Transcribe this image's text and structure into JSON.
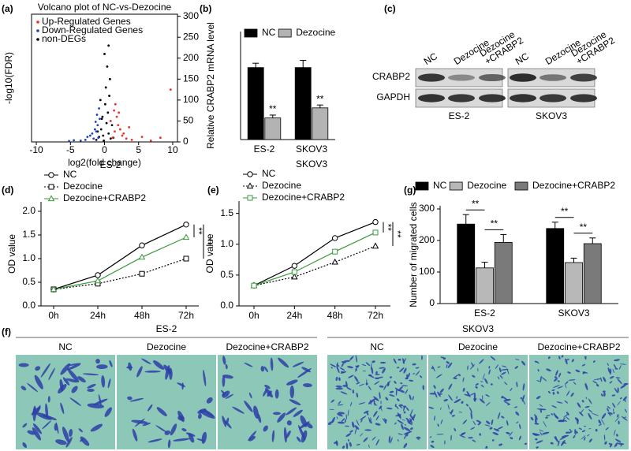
{
  "panel_labels": [
    "(a)",
    "(b)",
    "(c)",
    "(d)",
    "(e)",
    "(f)",
    "(g)"
  ],
  "chart_data": [
    {
      "type": "scatter",
      "title": "Volcano plot of NC-vs-Dezocine",
      "x_label": "log2(fold change)",
      "y_label": "-log10(FDR)",
      "xlim": [
        -10.7,
        10.7
      ],
      "xticks": [
        -10,
        -5,
        0,
        5,
        10
      ],
      "ylim": [
        0,
        305
      ],
      "yticks": [
        0,
        50,
        100,
        150,
        200,
        250,
        300
      ],
      "legend": "upper left",
      "series": [
        {
          "name": "Up-Regulated Genes",
          "color": "#e8332a",
          "x": [
            1.2,
            1.5,
            2.0,
            2.6,
            3.2,
            4.0,
            1.8,
            2.3,
            1.4,
            5.5,
            6.8,
            9.7,
            8.2,
            2.8,
            1.6,
            3.6,
            0.9,
            2.1
          ],
          "values": [
            10,
            25,
            40,
            15,
            8,
            5,
            60,
            30,
            75,
            12,
            3,
            125,
            10,
            20,
            90,
            35,
            50,
            70
          ]
        },
        {
          "name": "Down-Regulated Genes",
          "color": "#1f3fbf",
          "x": [
            -0.9,
            -1.2,
            -1.6,
            -2.1,
            -2.8,
            -3.5,
            -1.0,
            -1.4,
            -0.7,
            -2.5,
            -1.8,
            -4.5,
            -5.2,
            -1.1,
            -0.8,
            -1.3
          ],
          "values": [
            10,
            25,
            8,
            15,
            5,
            3,
            40,
            30,
            55,
            12,
            20,
            4,
            2,
            65,
            80,
            48
          ]
        },
        {
          "name": "non-DEGs",
          "color": "#000000",
          "x": [
            -1.2,
            -0.8,
            -0.5,
            -0.3,
            0.1,
            0.3,
            0.6,
            0.9,
            -0.6,
            0.2,
            0.5,
            -0.2,
            0.8,
            1.1,
            -1.0,
            0.4,
            0.0,
            0.7,
            -0.4,
            1.3,
            0.6,
            -0.1
          ],
          "values": [
            5,
            12,
            30,
            60,
            90,
            45,
            20,
            8,
            100,
            130,
            70,
            15,
            150,
            40,
            25,
            180,
            210,
            110,
            55,
            10,
            230,
            3
          ]
        }
      ]
    },
    {
      "type": "bar",
      "y_label": "Relative CRABP2 mRNA level",
      "categories": [
        "ES-2",
        "SKOV3"
      ],
      "ylim": [
        0,
        1.5
      ],
      "series": [
        {
          "name": "NC",
          "color": "#000000",
          "values": [
            1.0,
            1.0
          ],
          "errors": [
            0.06,
            0.1
          ]
        },
        {
          "name": "Dezocine",
          "color": "#b3b3b3",
          "values": [
            0.3,
            0.44
          ],
          "errors": [
            0.04,
            0.04
          ]
        }
      ],
      "significance": [
        "**",
        "**"
      ]
    },
    {
      "type": "line",
      "title": "ES-2",
      "y_label": "OD value",
      "categories": [
        "0h",
        "24h",
        "48h",
        "72h"
      ],
      "ylim": [
        0,
        2.2
      ],
      "yticks": [
        {
          "value": 0,
          "label": "0.0"
        },
        0.5,
        {
          "value": 1,
          "label": "1.0"
        },
        1.5,
        {
          "value": 2,
          "label": "2.0"
        }
      ],
      "series": [
        {
          "name": "NC",
          "color": "#000000",
          "marker": "circle",
          "dashed": false,
          "values": [
            0.35,
            0.65,
            1.28,
            1.72
          ]
        },
        {
          "name": "Dezocine",
          "color": "#000000",
          "marker": "square",
          "dashed": true,
          "values": [
            0.35,
            0.47,
            0.68,
            1.0
          ]
        },
        {
          "name": "Dezocine+CRABP2",
          "color": "#3a9a3a",
          "marker": "triangle",
          "dashed": false,
          "values": [
            0.35,
            0.53,
            1.03,
            1.45
          ]
        }
      ],
      "significance": [
        "**",
        "**"
      ]
    },
    {
      "type": "line",
      "title": "SKOV3",
      "y_label": "OD value",
      "categories": [
        "0h",
        "24h",
        "48h",
        "72h"
      ],
      "ylim": [
        0,
        1.7
      ],
      "yticks": [
        {
          "value": 0,
          "label": "0.0"
        },
        0.5,
        {
          "value": 1,
          "label": "1.0"
        },
        1.5
      ],
      "series": [
        {
          "name": "NC",
          "color": "#000000",
          "marker": "circle",
          "dashed": false,
          "values": [
            0.33,
            0.65,
            1.1,
            1.36
          ]
        },
        {
          "name": "Dezocine",
          "color": "#000000",
          "marker": "triangle",
          "dashed": true,
          "values": [
            0.33,
            0.47,
            0.71,
            0.97
          ]
        },
        {
          "name": "Dezocine+CRABP2",
          "color": "#3a9a3a",
          "marker": "square",
          "dashed": false,
          "values": [
            0.33,
            0.55,
            0.88,
            1.19
          ]
        }
      ],
      "significance": [
        "**",
        "**"
      ]
    },
    {
      "type": "bar",
      "y_label": "Number of migrated cells",
      "categories": [
        "ES-2",
        "SKOV3"
      ],
      "ylim": [
        0,
        310
      ],
      "yticks": [
        0,
        100,
        200,
        300
      ],
      "series": [
        {
          "name": "NC",
          "color": "#000000",
          "values": [
            252,
            238
          ],
          "errors": [
            30,
            20
          ]
        },
        {
          "name": "Dezocine",
          "color": "#b8b8b8",
          "values": [
            113,
            130
          ],
          "errors": [
            18,
            14
          ]
        },
        {
          "name": "Dezocine+CRABP2",
          "color": "#7a7a7a",
          "values": [
            194,
            190
          ],
          "errors": [
            25,
            18
          ]
        }
      ],
      "significance": [
        "**",
        "**",
        "**",
        "**"
      ]
    }
  ],
  "blot": {
    "lanes": [
      [
        "NC"
      ],
      [
        "Dezocine"
      ],
      [
        "Dezocine",
        "+CRABP2"
      ]
    ],
    "rows": [
      "CRABP2",
      "GAPDH"
    ],
    "groups": [
      "ES-2",
      "SKOV3"
    ]
  },
  "micrographs": {
    "groups": [
      "ES-2",
      "SKOV3"
    ],
    "columns": [
      "NC",
      "Dezocine",
      "Dezocine+CRABP2"
    ]
  }
}
